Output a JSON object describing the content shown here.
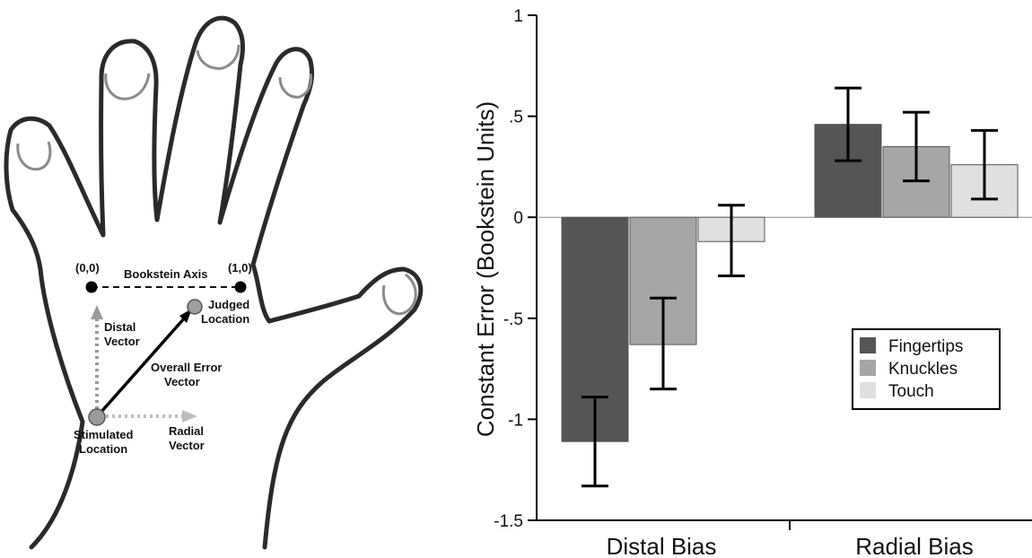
{
  "diagram": {
    "origin_label": "(0,0)",
    "end_label": "(1,0)",
    "axis_label": "Bookstein Axis",
    "distal_label": [
      "Distal",
      "Vector"
    ],
    "judged_label": [
      "Judged",
      "Location"
    ],
    "overall_label": [
      "Overall Error",
      "Vector"
    ],
    "stimulated_label": [
      "Stimulated",
      "Location"
    ],
    "radial_label": [
      "Radial",
      "Vector"
    ]
  },
  "colors": {
    "Fingertips": "#555555",
    "Knuckles": "#a6a6a6",
    "Touch": "#e0e0e0"
  },
  "chart_data": {
    "type": "bar",
    "title": "",
    "xlabel": "",
    "ylabel": "Constant Error (Bookstein Units)",
    "categories": [
      "Distal Bias",
      "Radial Bias"
    ],
    "ylim": [
      -1.5,
      1
    ],
    "yticks": [
      {
        "value": 1,
        "label": "1"
      },
      {
        "value": 0.5,
        "label": ".5"
      },
      {
        "value": 0,
        "label": "0"
      },
      {
        "value": -0.5,
        "label": "-.5"
      },
      {
        "value": -1,
        "label": "-1"
      },
      {
        "value": -1.5,
        "label": "-1.5"
      }
    ],
    "legend_position": "lower-right",
    "series": [
      {
        "name": "Fingertips",
        "values": [
          -1.11,
          0.46
        ],
        "err_low": [
          -1.33,
          0.28
        ],
        "err_high": [
          -0.89,
          0.64
        ]
      },
      {
        "name": "Knuckles",
        "values": [
          -0.63,
          0.35
        ],
        "err_low": [
          -0.85,
          0.18
        ],
        "err_high": [
          -0.4,
          0.52
        ]
      },
      {
        "name": "Touch",
        "values": [
          -0.12,
          0.26
        ],
        "err_low": [
          -0.29,
          0.09
        ],
        "err_high": [
          0.06,
          0.43
        ]
      }
    ]
  }
}
